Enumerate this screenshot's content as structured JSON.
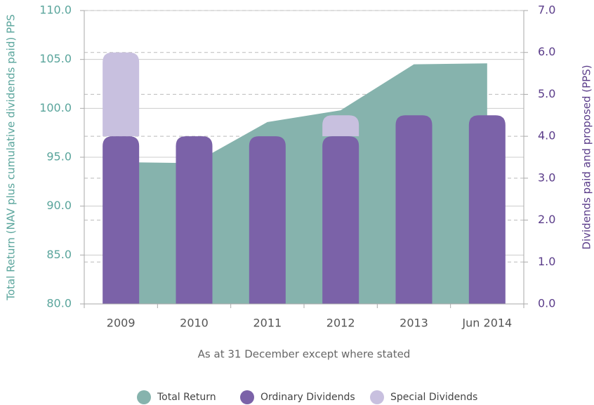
{
  "chart_data": {
    "type": "bar",
    "categories": [
      "2009",
      "2010",
      "2011",
      "2012",
      "2013",
      "Jun 2014"
    ],
    "xlabel": "As at 31 December except where stated",
    "ylabel": "Total Return (NAV plus cumulative dividends paid) PPS",
    "y2label": "Dividends paid and proposed (PPS)",
    "ylim": [
      80,
      110
    ],
    "yticks": [
      {
        "value": 80,
        "label": "80.0"
      },
      {
        "value": 85,
        "label": "85.0"
      },
      {
        "value": 90,
        "label": "90.0"
      },
      {
        "value": 95,
        "label": "95.0"
      },
      {
        "value": 100,
        "label": "100.0"
      },
      {
        "value": 105,
        "label": "105.0"
      },
      {
        "value": 110,
        "label": "110.0"
      }
    ],
    "y2lim": [
      0,
      7
    ],
    "y2ticks": [
      {
        "value": 0,
        "label": "0.0"
      },
      {
        "value": 1,
        "label": "1.0"
      },
      {
        "value": 2,
        "label": "2.0"
      },
      {
        "value": 3,
        "label": "3.0"
      },
      {
        "value": 4,
        "label": "4.0"
      },
      {
        "value": 5,
        "label": "5.0"
      },
      {
        "value": 6,
        "label": "6.0"
      },
      {
        "value": 7,
        "label": "7.0"
      }
    ],
    "series": [
      {
        "name": "Total Return",
        "type": "area",
        "color": "#86b3ad",
        "values": [
          94.5,
          94.4,
          98.6,
          99.8,
          104.5,
          104.6
        ]
      },
      {
        "name": "Ordinary Dividends",
        "type": "bar",
        "axis": "y2",
        "color": "#7b62a8",
        "values": [
          4.0,
          4.0,
          4.0,
          4.0,
          4.5,
          4.5
        ]
      },
      {
        "name": "Special Dividends",
        "type": "bar",
        "axis": "y2",
        "color": "#c8c0df",
        "values": [
          2.0,
          0,
          0,
          0.5,
          0,
          0
        ]
      }
    ],
    "stacked": true,
    "legend": "bottom"
  }
}
